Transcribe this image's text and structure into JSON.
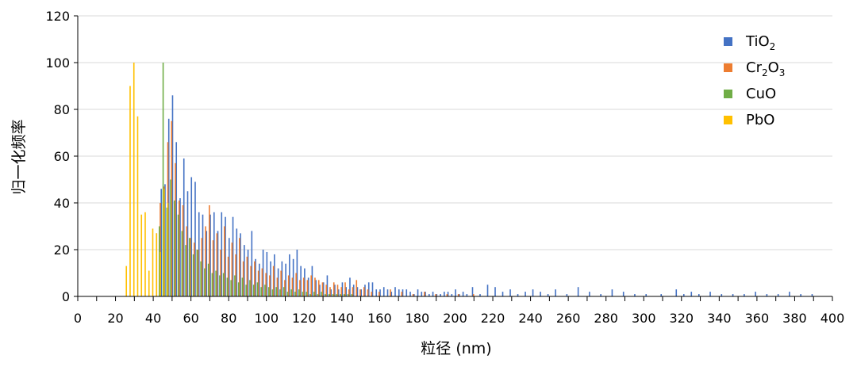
{
  "chart_data": {
    "type": "bar",
    "xlabel": "粒径 (nm)",
    "ylabel": "归一化频率",
    "xlim": [
      0,
      400
    ],
    "ylim": [
      0,
      120
    ],
    "x_ticks": [
      "0",
      "20",
      "40",
      "60",
      "80",
      "100",
      "120",
      "140",
      "160",
      "180",
      "200",
      "220",
      "240",
      "260",
      "280",
      "300",
      "320",
      "340",
      "360",
      "380",
      "400"
    ],
    "y_ticks": [
      "0",
      "20",
      "40",
      "60",
      "80",
      "100",
      "120"
    ],
    "grid": "horizontal",
    "legend_position": "top-right",
    "series": [
      {
        "name": "TiO2",
        "legend_label": "TiO",
        "legend_sub": "2",
        "color": "#4472C4",
        "x": [
          45,
          47,
          49,
          51,
          53,
          55,
          57,
          59,
          61,
          63,
          65,
          67,
          69,
          71,
          73,
          75,
          77,
          79,
          81,
          83,
          85,
          87,
          89,
          91,
          93,
          95,
          97,
          99,
          101,
          103,
          105,
          107,
          109,
          111,
          113,
          115,
          117,
          119,
          121,
          123,
          125,
          127,
          129,
          131,
          133,
          135,
          137,
          139,
          141,
          143,
          145,
          147,
          149,
          151,
          153,
          155,
          157,
          159,
          161,
          163,
          165,
          167,
          169,
          171,
          173,
          175,
          177,
          179,
          181,
          183,
          185,
          187,
          189,
          191,
          193,
          195,
          197,
          199,
          201,
          203,
          205,
          207,
          210,
          214,
          218,
          222,
          226,
          230,
          234,
          238,
          242,
          246,
          250,
          254,
          260,
          266,
          272,
          278,
          284,
          290,
          296,
          302,
          310,
          318,
          322,
          326,
          330,
          336,
          342,
          348,
          354,
          360,
          366,
          372,
          378,
          384,
          390
        ],
        "y": [
          46,
          48,
          76,
          86,
          66,
          42,
          59,
          45,
          51,
          49,
          36,
          35,
          28,
          35,
          36,
          28,
          36,
          34,
          25,
          34,
          29,
          27,
          22,
          20,
          28,
          16,
          14,
          20,
          19,
          15,
          18,
          12,
          15,
          14,
          18,
          16,
          20,
          13,
          12,
          8,
          13,
          7,
          5,
          6,
          9,
          3,
          5,
          3,
          6,
          4,
          8,
          5,
          4,
          3,
          5,
          6,
          6,
          3,
          3,
          4,
          3,
          2,
          4,
          3,
          3,
          3,
          2,
          1,
          3,
          2,
          2,
          1,
          2,
          1,
          1,
          2,
          2,
          1,
          3,
          1,
          2,
          1,
          4,
          1,
          5,
          4,
          2,
          3,
          1,
          2,
          3,
          2,
          1,
          3,
          1,
          4,
          2,
          1,
          3,
          2,
          1,
          1,
          1,
          3,
          1,
          2,
          1,
          2,
          1,
          1,
          1,
          2,
          1,
          1,
          2,
          1,
          1
        ]
      },
      {
        "name": "Cr2O3",
        "legend_label": "Cr",
        "legend_sub": "2",
        "legend_label2": "O",
        "legend_sub2": "3",
        "color": "#ED7D31",
        "x": [
          42,
          44,
          46,
          48,
          50,
          52,
          54,
          56,
          58,
          60,
          62,
          64,
          66,
          68,
          70,
          72,
          74,
          76,
          78,
          80,
          82,
          84,
          86,
          88,
          90,
          92,
          94,
          96,
          98,
          100,
          102,
          104,
          106,
          108,
          110,
          112,
          114,
          116,
          118,
          120,
          122,
          124,
          126,
          128,
          130,
          132,
          134,
          136,
          138,
          140,
          142,
          144,
          146,
          148,
          150,
          152,
          154,
          156,
          160,
          166,
          172,
          178,
          184,
          190,
          196,
          202,
          210
        ],
        "y": [
          27,
          40,
          47,
          66,
          75,
          57,
          41,
          39,
          30,
          25,
          23,
          20,
          25,
          30,
          39,
          24,
          27,
          20,
          30,
          17,
          23,
          18,
          25,
          15,
          17,
          13,
          15,
          11,
          12,
          10,
          9,
          13,
          8,
          11,
          7,
          9,
          8,
          10,
          7,
          8,
          7,
          9,
          8,
          7,
          6,
          5,
          4,
          6,
          5,
          4,
          6,
          3,
          4,
          7,
          3,
          4,
          3,
          2,
          2,
          3,
          2,
          1,
          2,
          1,
          1,
          1,
          1
        ]
      },
      {
        "name": "CuO",
        "legend_label": "CuO",
        "color": "#70AD47",
        "x": [
          43,
          45,
          47,
          49,
          51,
          53,
          55,
          57,
          59,
          61,
          63,
          65,
          67,
          69,
          71,
          73,
          75,
          77,
          79,
          81,
          83,
          85,
          87,
          89,
          91,
          93,
          95,
          97,
          99,
          101,
          103,
          105,
          107,
          109,
          111,
          113,
          115,
          117,
          119,
          121,
          123,
          125,
          127,
          129,
          131,
          133,
          135,
          137,
          139,
          141,
          143,
          145
        ],
        "y": [
          30,
          100,
          38,
          50,
          41,
          35,
          28,
          22,
          25,
          18,
          20,
          15,
          12,
          14,
          10,
          11,
          9,
          10,
          8,
          7,
          9,
          6,
          8,
          5,
          7,
          5,
          6,
          4,
          5,
          4,
          3,
          4,
          3,
          4,
          2,
          3,
          2,
          3,
          2,
          2,
          1,
          2,
          1,
          2,
          1,
          1,
          1,
          1,
          1,
          1,
          1,
          1
        ]
      },
      {
        "name": "PbO",
        "legend_label": "PbO",
        "color": "#FFC000",
        "x": [
          25,
          27,
          29,
          31,
          33,
          35,
          37,
          39,
          41,
          43,
          45,
          47
        ],
        "y": [
          13,
          90,
          100,
          77,
          35,
          36,
          11,
          29,
          27,
          19,
          46,
          40
        ]
      }
    ]
  }
}
